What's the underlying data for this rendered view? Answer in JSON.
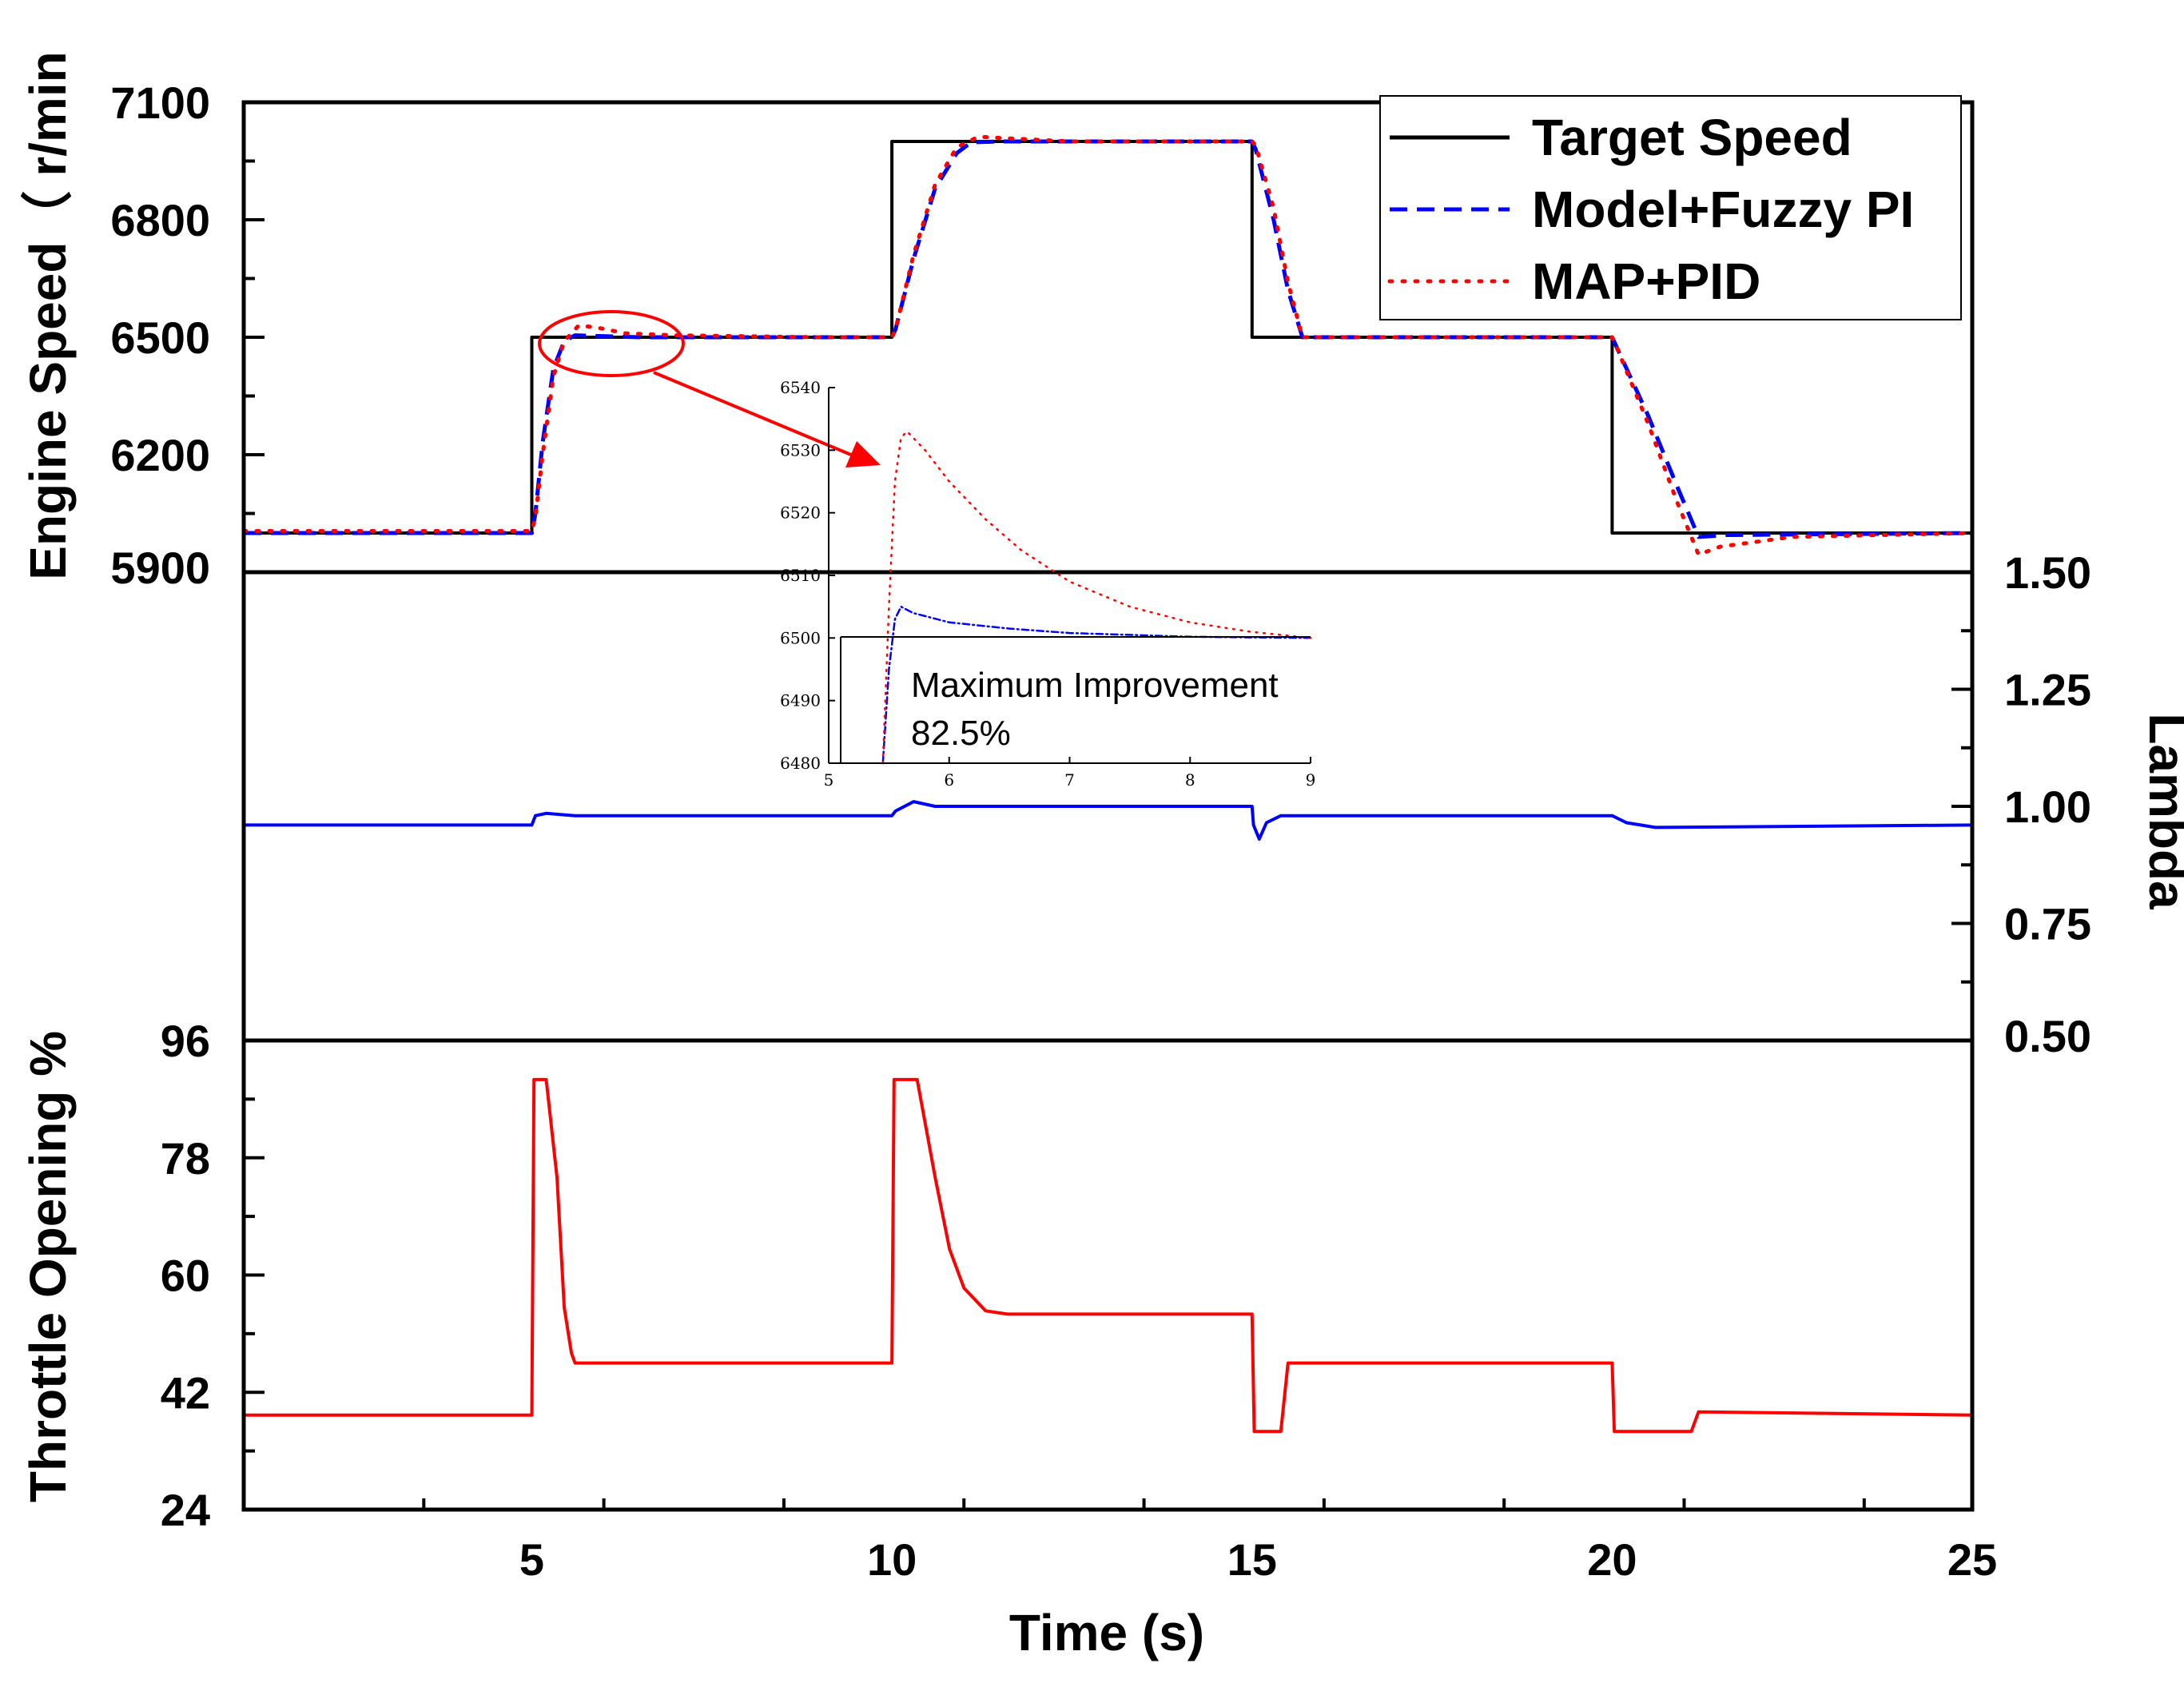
{
  "chart_data": {
    "type": "line",
    "x_axis": {
      "label": "Time (s)",
      "range": [
        1,
        25
      ],
      "ticks": [
        5,
        10,
        15,
        20,
        25
      ],
      "tick_labels": [
        "5",
        "10",
        "15",
        "20",
        "25"
      ]
    },
    "panels": [
      {
        "id": "speed",
        "ylabel": "Engine Speed（ r/min",
        "y_side": "left",
        "ylim": [
          5900,
          7100
        ],
        "ticks": [
          5900,
          6200,
          6500,
          6800,
          7100
        ],
        "tick_labels": [
          "5900",
          "6200",
          "6500",
          "6800",
          "7100"
        ],
        "series": [
          {
            "name": "Target Speed",
            "color": "#000000",
            "style": "solid",
            "x": [
              1,
              5,
              5,
              10,
              10,
              15,
              15,
              20,
              20,
              25
            ],
            "y": [
              6000,
              6000,
              6500,
              6500,
              7000,
              7000,
              6500,
              6500,
              6000,
              6000
            ]
          },
          {
            "name": "Model+Fuzzy PI",
            "color": "#0000ff",
            "style": "dashed",
            "x": [
              1,
              5,
              5.05,
              5.15,
              5.3,
              5.45,
              5.6,
              6.5,
              10,
              10.05,
              10.3,
              10.6,
              10.9,
              11.1,
              11.5,
              15,
              15.05,
              15.3,
              15.5,
              15.7,
              20,
              20.05,
              20.5,
              20.9,
              21.2,
              21.6,
              25
            ],
            "y": [
              6000,
              6000,
              6050,
              6230,
              6420,
              6490,
              6505,
              6500,
              6500,
              6520,
              6700,
              6880,
              6970,
              6998,
              7000,
              7000,
              6980,
              6800,
              6620,
              6500,
              6500,
              6480,
              6300,
              6120,
              5990,
              5995,
              6000
            ]
          },
          {
            "name": "MAP+PID",
            "color": "#ff0000",
            "style": "dotted",
            "x": [
              1,
              5,
              5.05,
              5.15,
              5.3,
              5.45,
              5.65,
              5.9,
              6.3,
              7,
              9,
              10,
              10.05,
              10.3,
              10.6,
              10.9,
              11.2,
              11.6,
              12.5,
              15,
              15.05,
              15.3,
              15.5,
              15.7,
              20,
              20.05,
              20.5,
              20.9,
              21.2,
              21.5,
              22.5,
              25
            ],
            "y": [
              6005,
              6005,
              6040,
              6200,
              6400,
              6490,
              6530,
              6525,
              6510,
              6505,
              6500,
              6500,
              6520,
              6710,
              6890,
              6985,
              7012,
              7008,
              7000,
              7000,
              6990,
              6830,
              6640,
              6500,
              6500,
              6480,
              6280,
              6080,
              5945,
              5965,
              5990,
              6000
            ]
          }
        ]
      },
      {
        "id": "lambda",
        "ylabel": "Lambda",
        "y_side": "right",
        "ylim": [
          0.5,
          1.5
        ],
        "ticks": [
          0.5,
          0.75,
          1.0,
          1.25,
          1.5
        ],
        "tick_labels": [
          "0.50",
          "0.75",
          "1.00",
          "1.25",
          "1.50"
        ],
        "series": [
          {
            "name": "Lambda",
            "color": "#0000ff",
            "style": "solid",
            "x": [
              1,
              5,
              5.05,
              5.2,
              5.6,
              10,
              10.05,
              10.3,
              10.6,
              15,
              15.02,
              15.1,
              15.2,
              15.4,
              20,
              20.2,
              20.6,
              25
            ],
            "y": [
              0.96,
              0.96,
              0.98,
              0.985,
              0.98,
              0.98,
              0.99,
              1.01,
              1.0,
              1.0,
              0.96,
              0.93,
              0.965,
              0.98,
              0.98,
              0.965,
              0.955,
              0.96
            ]
          }
        ]
      },
      {
        "id": "throttle",
        "ylabel": "Throttle Opening %",
        "y_side": "left",
        "ylim": [
          24,
          96
        ],
        "ticks": [
          24,
          42,
          60,
          78,
          96
        ],
        "tick_labels": [
          "24",
          "42",
          "60",
          "78",
          "96"
        ],
        "series": [
          {
            "name": "Throttle Opening",
            "color": "#ff0000",
            "style": "solid",
            "x": [
              1,
              5,
              5.03,
              5.2,
              5.35,
              5.45,
              5.55,
              5.6,
              10,
              10.03,
              10.35,
              10.6,
              10.8,
              11.0,
              11.3,
              11.6,
              15,
              15.03,
              15.4,
              15.5,
              20,
              20.03,
              21.1,
              21.2,
              25
            ],
            "y": [
              38.5,
              38.5,
              90,
              90,
              75,
              55,
              48,
              46.5,
              46.5,
              90,
              90,
              75,
              64,
              58,
              54.5,
              54,
              54,
              36,
              36,
              46.5,
              46.5,
              36,
              36,
              39,
              38.5
            ]
          }
        ]
      }
    ],
    "legend": {
      "placement": "top-right",
      "entries": [
        "Target Speed",
        "Model+Fuzzy PI",
        "MAP+PID"
      ]
    },
    "inset": {
      "title": "",
      "xlim": [
        5,
        9
      ],
      "ylim": [
        6480,
        6540
      ],
      "x_ticks": [
        5,
        6,
        7,
        8,
        9
      ],
      "x_tick_labels": [
        "5",
        "6",
        "7",
        "8",
        "9"
      ],
      "y_ticks": [
        6480,
        6490,
        6500,
        6510,
        6520,
        6530,
        6540
      ],
      "y_tick_labels": [
        "6480",
        "6490",
        "6500",
        "6510",
        "6520",
        "6530",
        "6540"
      ],
      "note_line1": "Maximum Improvement",
      "note_line2": "82.5%",
      "series": [
        {
          "name": "Model+Fuzzy PI",
          "color": "#0000ff",
          "style": "dashdot",
          "x": [
            5.45,
            5.5,
            5.55,
            5.6,
            5.7,
            6.0,
            6.5,
            7.0,
            8.0,
            9.0
          ],
          "y": [
            6480,
            6495,
            6503,
            6505,
            6504,
            6502.5,
            6501.5,
            6500.8,
            6500.2,
            6500
          ]
        },
        {
          "name": "MAP+PID",
          "color": "#ff0000",
          "style": "dotted",
          "x": [
            5.45,
            5.5,
            5.55,
            5.6,
            5.65,
            5.8,
            6.0,
            6.3,
            6.6,
            7.0,
            7.5,
            8.0,
            8.5,
            9.0
          ],
          "y": [
            6480,
            6505,
            6525,
            6532,
            6533,
            6530,
            6525,
            6519,
            6514,
            6509,
            6505,
            6502.5,
            6501,
            6500
          ]
        }
      ]
    }
  }
}
